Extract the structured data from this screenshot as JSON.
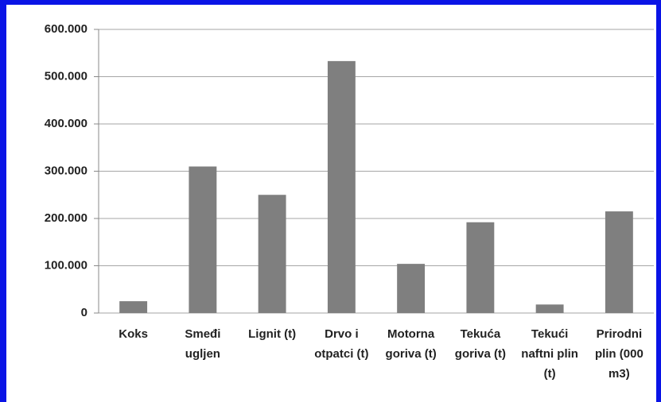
{
  "chart_data": {
    "type": "bar",
    "categories": [
      "Koks",
      "Smeđi ugljen",
      "Lignit (t)",
      "Drvo i otpatci (t)",
      "Motorna goriva (t)",
      "Tekuća goriva (t)",
      "Tekući naftni plin (t)",
      "Prirodni plin (000 m3)"
    ],
    "values": [
      25000,
      310000,
      250000,
      533000,
      104000,
      192000,
      18000,
      215000
    ],
    "color": "#7f7f7f",
    "ylim": [
      0,
      600000
    ],
    "yticks": [
      0,
      {
        "value": 100000,
        "label": "100.000"
      },
      {
        "value": 200000,
        "label": "200.000"
      },
      {
        "value": 300000,
        "label": "300.000"
      },
      {
        "value": 400000,
        "label": "400.000"
      },
      {
        "value": 500000,
        "label": "500.000"
      },
      {
        "value": 600000,
        "label": "600.000"
      }
    ],
    "grid": true
  }
}
